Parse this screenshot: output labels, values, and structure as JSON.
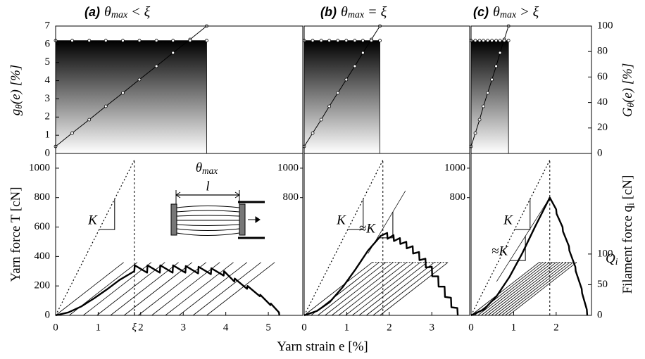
{
  "chart_data": {
    "type": "strain-panels",
    "xlabel": [
      "Yarn strain e [%]"
    ],
    "top": {
      "ylabel": [
        "g",
        "θ",
        "(e) [%]"
      ],
      "ylim": [
        0,
        7
      ],
      "yticks": [
        0,
        1,
        2,
        3,
        4,
        5,
        6,
        7
      ],
      "y2label": [
        "G",
        "θ",
        "(e) [%]"
      ],
      "y2lim": [
        0,
        100
      ],
      "y2ticks": [
        0,
        20,
        40,
        60,
        80,
        100
      ]
    },
    "bottom": {
      "ylabel": [
        "Yarn force T [cN]"
      ],
      "ylim": [
        0,
        1100
      ],
      "yticks": [
        0,
        200,
        400,
        600,
        800,
        1000
      ],
      "y2label": [
        "Filament force q",
        "i",
        " [cN]"
      ],
      "y2lim": [
        0,
        264
      ],
      "y2ticks": [
        0,
        50,
        100
      ],
      "cap_label": [
        "Q",
        "i"
      ],
      "cap_value": 86
    },
    "panels": [
      {
        "tag": "(a)",
        "title": [
          "θ",
          "max",
          " < ξ"
        ],
        "xlim": [
          0,
          5.81
        ],
        "xticks": [
          0,
          1,
          {
            "value": 1.85,
            "label": "ξ"
          },
          2,
          3,
          4,
          5
        ],
        "theta_max": 3.55,
        "theta_label": [
          "θ",
          "max"
        ],
        "g_value": 6.2,
        "G": {
          "x": [
            0,
            0.39,
            0.79,
            1.18,
            1.58,
            1.97,
            2.37,
            2.76,
            3.16,
            3.55
          ],
          "values": [
            5.5,
            16,
            26.5,
            37,
            47.5,
            58,
            68.5,
            79,
            89.5,
            100
          ]
        },
        "T": {
          "x": [
            0,
            0.3,
            0.6,
            0.9,
            1.2,
            1.5,
            1.85,
            1.86,
            2.15,
            2.16,
            2.45,
            2.46,
            2.75,
            2.76,
            3.05,
            3.06,
            3.35,
            3.36,
            3.65,
            3.66,
            3.95,
            3.96,
            4.2,
            4.21,
            4.5,
            4.51,
            4.8,
            4.81,
            5.05,
            5.06,
            5.25,
            5.26
          ],
          "values": [
            0,
            20,
            60,
            115,
            175,
            240,
            300,
            340,
            290,
            340,
            290,
            340,
            290,
            340,
            290,
            335,
            285,
            330,
            280,
            320,
            270,
            300,
            230,
            250,
            180,
            200,
            130,
            140,
            70,
            80,
            20,
            0
          ]
        },
        "K_line": {
          "x": [
            0,
            1.86
          ],
          "values": [
            0,
            1060
          ]
        },
        "K_label": "K",
        "xi": 1.85,
        "cap": 360,
        "cap_line": false,
        "filaments": {
          "starts": [
            0,
            0.32,
            0.65,
            0.97,
            1.29,
            1.61,
            1.94,
            2.26,
            2.58,
            2.9,
            3.23,
            3.55
          ],
          "rise": 1.6
        },
        "inner_yticks": [
          800,
          1000
        ],
        "inset_label": "l"
      },
      {
        "tag": "(b)",
        "title": [
          "θ",
          "max",
          " = ξ"
        ],
        "xlim": [
          0,
          3.89
        ],
        "xticks": [
          0,
          1,
          2,
          3
        ],
        "theta_max": 1.78,
        "g_value": 6.2,
        "G": {
          "x": [
            0,
            0.2,
            0.4,
            0.59,
            0.79,
            0.99,
            1.19,
            1.38,
            1.58,
            1.78
          ],
          "values": [
            5.5,
            16,
            26.5,
            37,
            47.5,
            58,
            68.5,
            79,
            89.5,
            100
          ]
        },
        "T": {
          "x": [
            0,
            0.3,
            0.6,
            0.9,
            1.2,
            1.5,
            1.8,
            1.95,
            1.96,
            2.1,
            2.11,
            2.25,
            2.26,
            2.4,
            2.41,
            2.55,
            2.56,
            2.7,
            2.71,
            2.85,
            2.86,
            3.0,
            3.01,
            3.15,
            3.16,
            3.3,
            3.31,
            3.45,
            3.46,
            3.6,
            3.61
          ],
          "values": [
            0,
            30,
            90,
            190,
            310,
            440,
            540,
            560,
            520,
            545,
            505,
            525,
            485,
            500,
            455,
            470,
            420,
            430,
            375,
            385,
            325,
            330,
            265,
            265,
            195,
            195,
            125,
            120,
            55,
            50,
            0
          ]
        },
        "K_line": {
          "x": [
            0,
            1.86
          ],
          "values": [
            0,
            1060
          ]
        },
        "K_label": "K",
        "approx_K_line": {
          "x": [
            1.5,
            2.38
          ],
          "values": [
            420,
            846
          ]
        },
        "approx_K_label": "≈K",
        "xi": 1.85,
        "cap": 360,
        "cap_line": true,
        "filaments": {
          "starts": [
            0,
            0.16,
            0.32,
            0.49,
            0.65,
            0.81,
            0.97,
            1.13,
            1.29,
            1.46,
            1.62,
            1.78
          ],
          "rise": 1.6
        },
        "inner_yticks": [
          800,
          1000
        ]
      },
      {
        "tag": "(c)",
        "title": [
          "θ",
          "max",
          " > ξ"
        ],
        "xlim": [
          0,
          2.83
        ],
        "xticks": [
          0,
          1,
          2
        ],
        "theta_max": 0.88,
        "g_value": 6.2,
        "G": {
          "x": [
            0,
            0.1,
            0.2,
            0.29,
            0.39,
            0.49,
            0.59,
            0.68,
            0.78,
            0.88
          ],
          "values": [
            5.5,
            16,
            26.5,
            37,
            47.5,
            58,
            68.5,
            79,
            89.5,
            100
          ]
        },
        "T": {
          "x": [
            0,
            0.3,
            0.6,
            0.9,
            1.2,
            1.5,
            1.85,
            2.0,
            2.01,
            2.15,
            2.16,
            2.3,
            2.31,
            2.45,
            2.46,
            2.6,
            2.61,
            2.72,
            2.73
          ],
          "values": [
            0,
            40,
            130,
            260,
            420,
            600,
            800,
            720,
            690,
            600,
            570,
            470,
            440,
            330,
            300,
            180,
            150,
            40,
            0
          ]
        },
        "K_line": {
          "x": [
            0,
            1.86
          ],
          "values": [
            0,
            1060
          ]
        },
        "K_label": "K",
        "approx_K_line": {
          "x": [
            0.6,
            1.85
          ],
          "values": [
            230,
            800
          ]
        },
        "approx_K_label": "≈K",
        "xi": 1.85,
        "cap": 360,
        "cap_line": true,
        "filaments": {
          "starts": [
            0,
            0.08,
            0.16,
            0.24,
            0.32,
            0.4,
            0.48,
            0.56,
            0.64,
            0.72,
            0.8,
            0.88
          ],
          "rise": 1.6
        }
      }
    ]
  }
}
